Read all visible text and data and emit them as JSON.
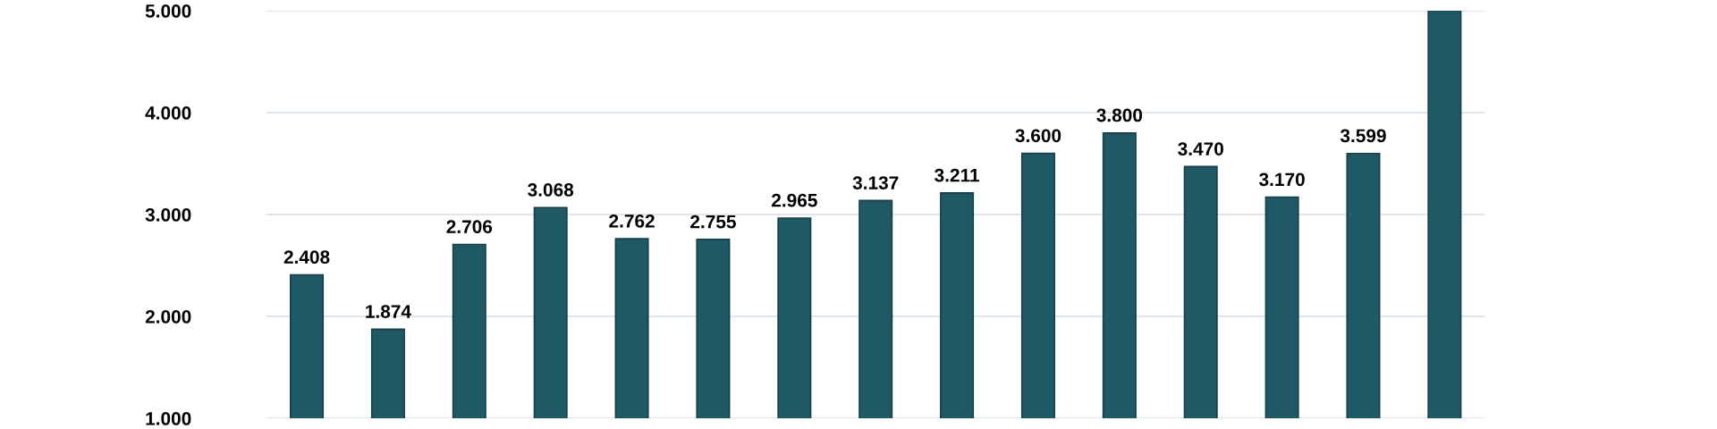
{
  "chart_data": {
    "type": "bar",
    "categories": [
      null,
      null,
      null,
      null,
      null,
      null,
      null,
      null,
      null,
      null,
      null,
      null,
      null,
      null,
      null
    ],
    "values": [
      2408,
      1874,
      2706,
      3068,
      2762,
      2755,
      2965,
      3137,
      3211,
      3600,
      3800,
      3470,
      3170,
      3599,
      5000
    ],
    "value_labels": [
      "2.408",
      "1.874",
      "2.706",
      "3.068",
      "2.762",
      "2.755",
      "2.965",
      "3.137",
      "3.211",
      "3.600",
      "3.800",
      "3.470",
      "3.170",
      "3.599",
      null
    ],
    "color": "#1f5965",
    "ylim": [
      1000,
      5000
    ],
    "yticks": [
      {
        "value": 1000,
        "label": "1.000"
      },
      {
        "value": 2000,
        "label": "2.000"
      },
      {
        "value": 3000,
        "label": "3.000"
      },
      {
        "value": 4000,
        "label": "4.000"
      },
      {
        "value": 5000,
        "label": "5.000"
      }
    ],
    "grid": "y",
    "tick_labels": "y"
  }
}
